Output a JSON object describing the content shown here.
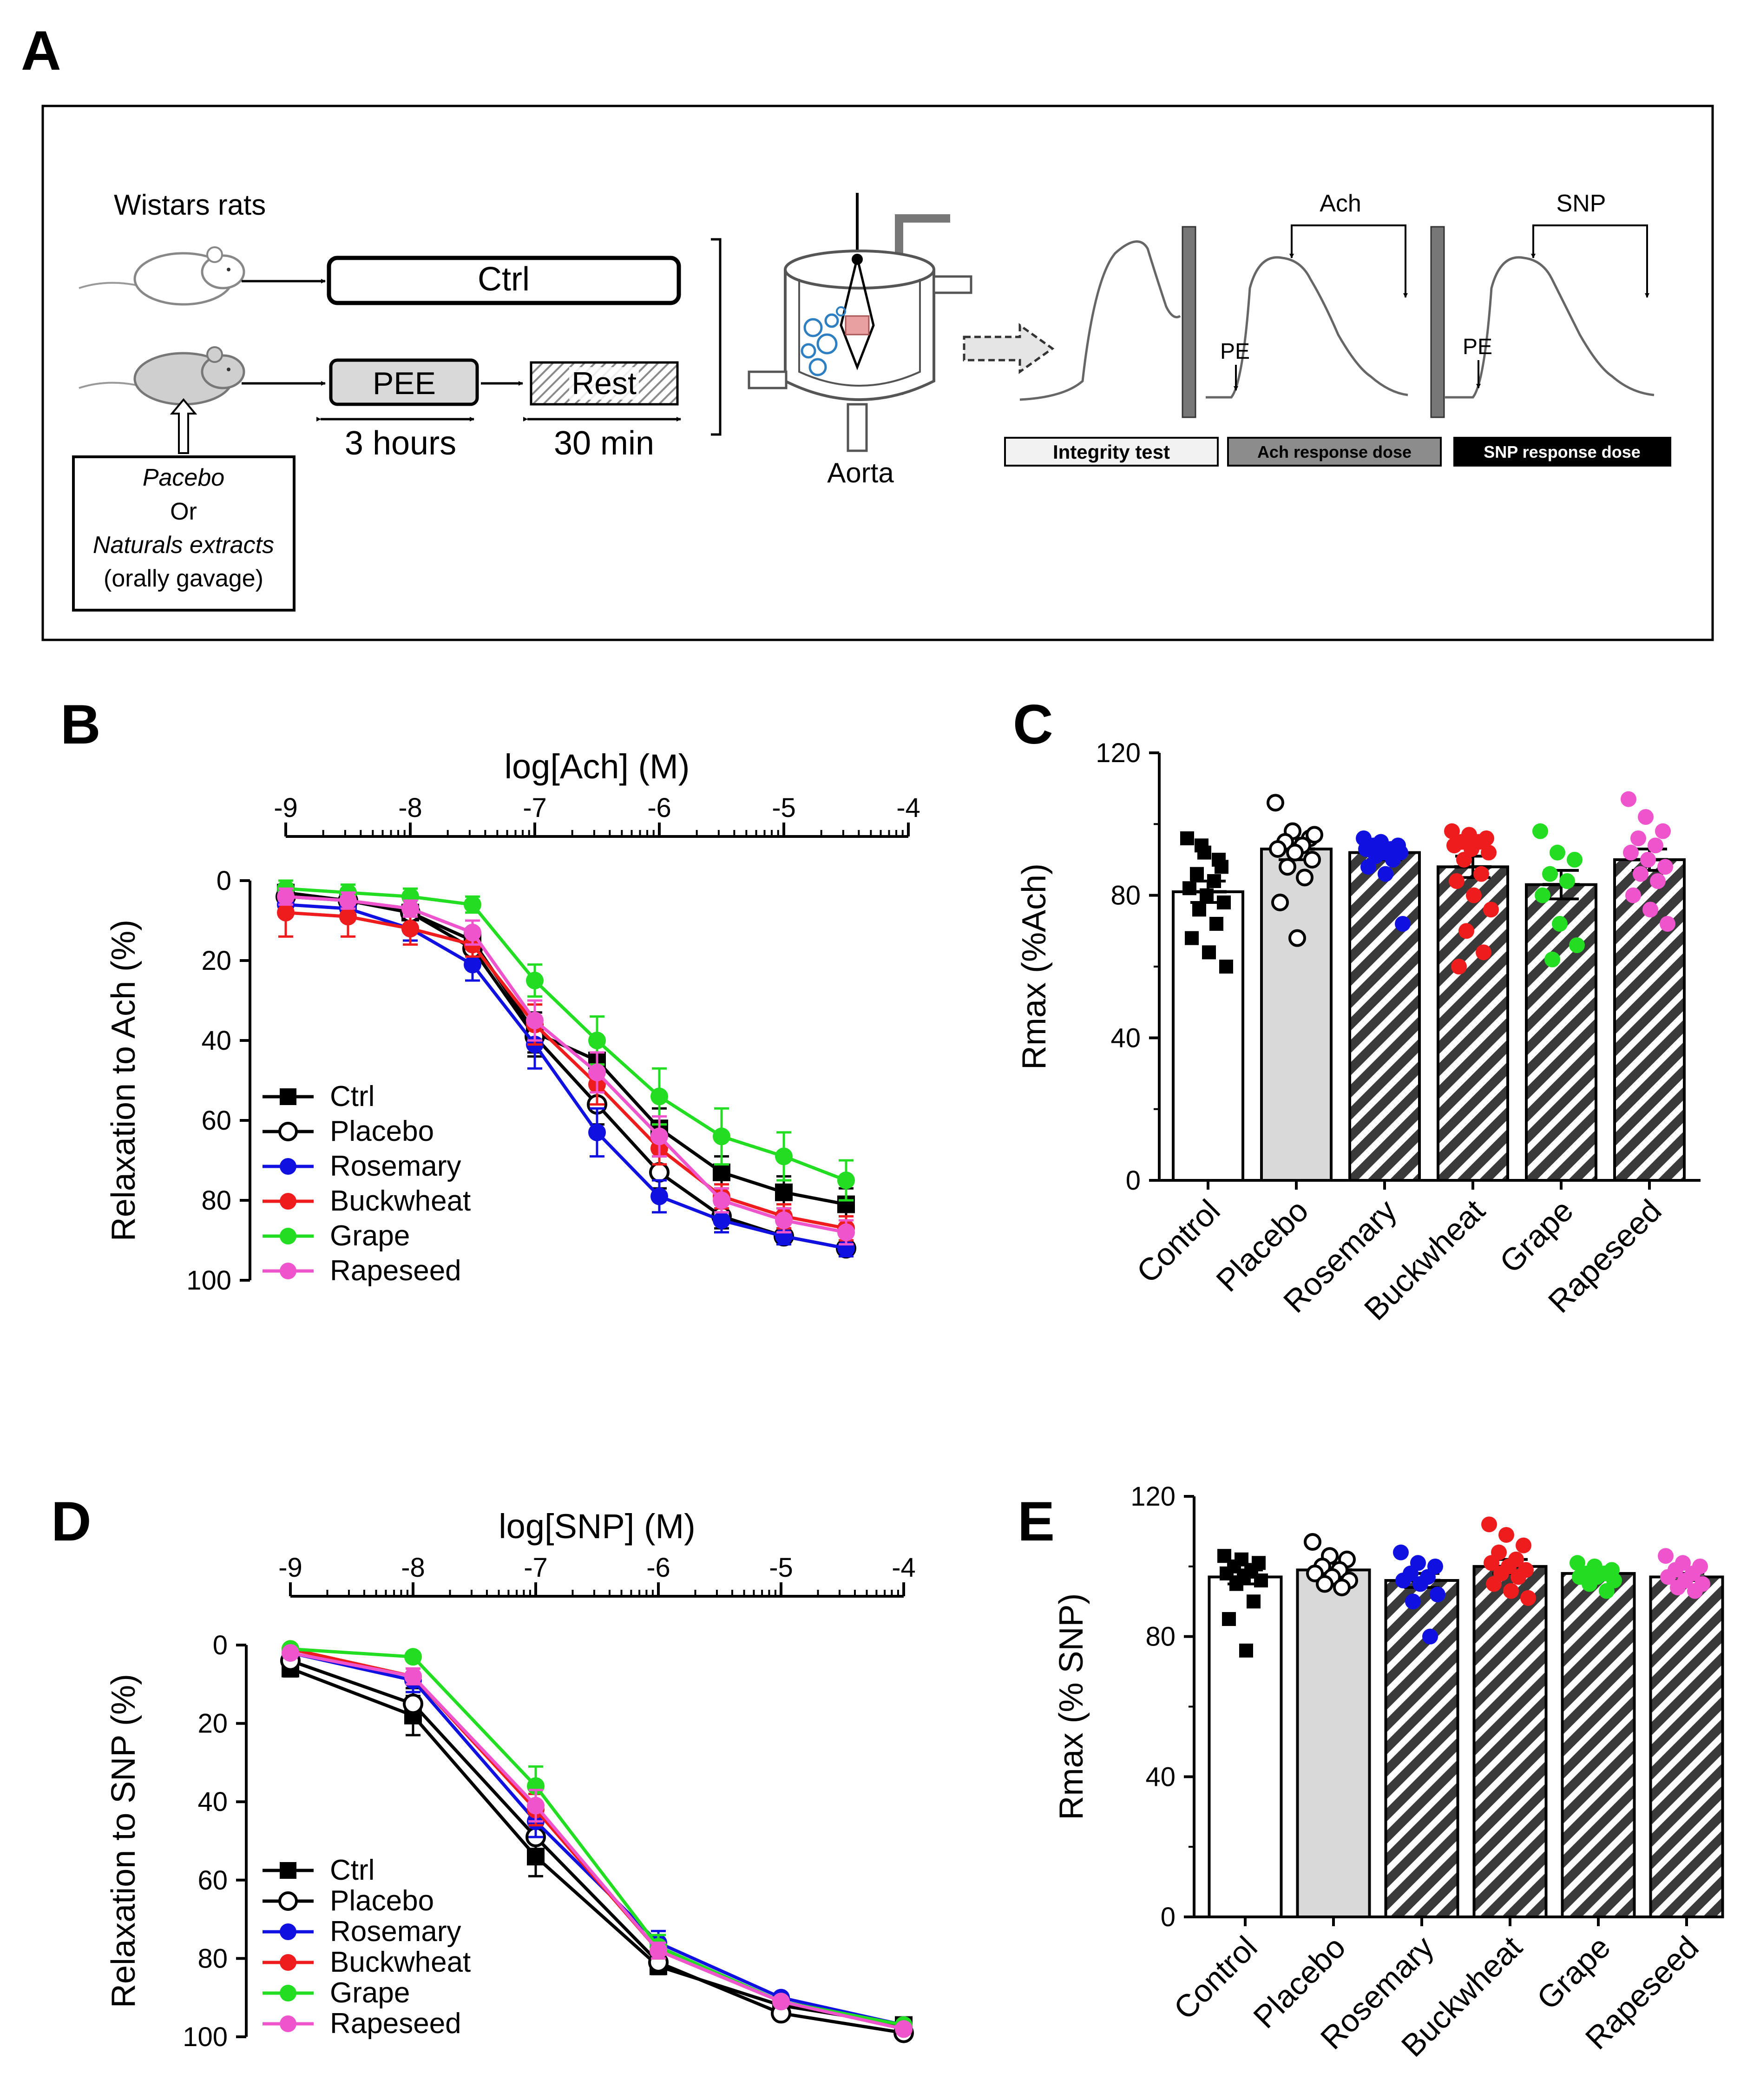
{
  "panels": {
    "A": "A",
    "B": "B",
    "C": "C",
    "D": "D",
    "E": "E"
  },
  "schematic": {
    "rats_label": "Wistars rats",
    "ctrl_box": "Ctrl",
    "pee_box": "PEE",
    "rest_box": "Rest",
    "pee_duration": "3 hours",
    "rest_duration": "30 min",
    "treatment_line1": "Pacebo",
    "treatment_line2": "Or",
    "treatment_line3": "Naturals extracts",
    "treatment_line4": "(orally gavage)",
    "aorta_label": "Aorta",
    "ach_label": "Ach",
    "snp_label": "SNP",
    "pe_label_1": "PE",
    "pe_label_2": "PE",
    "integrity_box": "Integrity test",
    "ach_box": "Ach response dose",
    "snp_box": "SNP response dose"
  },
  "colors": {
    "Ctrl": "#000000",
    "Placebo": "#000000",
    "Rosemary": "#1010e0",
    "Buckwheat": "#ee1c1c",
    "Grape": "#22dd22",
    "Rapeseed": "#ee55cc",
    "placebo_bar": "#d9d9d9",
    "hatch": "#3a3a3a",
    "bubbles": "#2e7fc1",
    "tissue": "#e8a0a0"
  },
  "chart_data": [
    {
      "id": "B",
      "type": "line",
      "title": "log[Ach] (M)",
      "xlabel": "log[Ach] (M)",
      "ylabel": "Relaxation to Ach (%)",
      "xlim": [
        -9,
        -4
      ],
      "ylim": [
        0,
        100
      ],
      "xticks": [
        "-9",
        "-8",
        "-7",
        "-6",
        "-5",
        "-4"
      ],
      "yticks": [
        "0",
        "20",
        "40",
        "60",
        "80",
        "100"
      ],
      "x": [
        -9,
        -8.5,
        -8,
        -7.5,
        -7,
        -6.5,
        -6,
        -5.5,
        -5,
        -4.5
      ],
      "series": [
        {
          "name": "Ctrl",
          "values": [
            3,
            5,
            8,
            15,
            38,
            45,
            62,
            73,
            78,
            81
          ],
          "err": [
            2,
            2,
            3,
            3,
            5,
            4,
            5,
            4,
            4,
            4
          ]
        },
        {
          "name": "Placebo",
          "values": [
            4,
            5,
            8,
            17,
            39,
            56,
            73,
            84,
            89,
            92
          ],
          "err": [
            2,
            2,
            3,
            3,
            5,
            5,
            4,
            3,
            2,
            2
          ]
        },
        {
          "name": "Rosemary",
          "values": [
            6,
            7,
            12,
            21,
            41,
            63,
            79,
            85,
            89,
            92
          ],
          "err": [
            3,
            3,
            3,
            4,
            6,
            6,
            4,
            3,
            2,
            2
          ]
        },
        {
          "name": "Buckwheat",
          "values": [
            8,
            9,
            12,
            16,
            36,
            51,
            67,
            79,
            84,
            87
          ],
          "err": [
            6,
            5,
            4,
            3,
            5,
            5,
            4,
            3,
            3,
            3
          ]
        },
        {
          "name": "Grape",
          "values": [
            2,
            3,
            4,
            6,
            25,
            40,
            54,
            64,
            69,
            75
          ],
          "err": [
            2,
            2,
            2,
            2,
            4,
            6,
            7,
            7,
            6,
            5
          ]
        },
        {
          "name": "Rapeseed",
          "values": [
            4,
            5,
            7,
            13,
            35,
            48,
            64,
            80,
            85,
            88
          ],
          "err": [
            2,
            2,
            2,
            3,
            5,
            5,
            5,
            3,
            3,
            3
          ]
        }
      ],
      "legend": [
        "Ctrl",
        "Placebo",
        "Rosemary",
        "Buckwheat",
        "Grape",
        "Rapeseed"
      ],
      "legend_position": "bottom-left"
    },
    {
      "id": "C",
      "type": "bar",
      "ylabel": "Rmax (%Ach)",
      "ylim": [
        0,
        120
      ],
      "yticks": [
        "0",
        "40",
        "80",
        "120"
      ],
      "categories": [
        "Control",
        "Placebo",
        "Rosemary",
        "Buckwheat",
        "Grape",
        "Rapeseed"
      ],
      "values": [
        81,
        93,
        92,
        88,
        83,
        90
      ],
      "sem": [
        3,
        3,
        2,
        3,
        4,
        3
      ],
      "points": [
        [
          96,
          92,
          88,
          86,
          84,
          82,
          80,
          78,
          76,
          72,
          68,
          64,
          60,
          94,
          90
        ],
        [
          106,
          98,
          96,
          95,
          94,
          93,
          92,
          90,
          88,
          85,
          78,
          68,
          97
        ],
        [
          96,
          95,
          94,
          94,
          93,
          93,
          92,
          92,
          91,
          90,
          88,
          86,
          72
        ],
        [
          98,
          97,
          96,
          95,
          95,
          94,
          93,
          92,
          90,
          86,
          84,
          80,
          76,
          70,
          64,
          60
        ],
        [
          98,
          92,
          90,
          86,
          84,
          80,
          72,
          66,
          62
        ],
        [
          107,
          102,
          98,
          96,
          94,
          92,
          90,
          88,
          86,
          84,
          80,
          76,
          72
        ]
      ]
    },
    {
      "id": "D",
      "type": "line",
      "title": "log[SNP] (M)",
      "xlabel": "log[SNP] (M)",
      "ylabel": "Relaxation to SNP (%)",
      "xlim": [
        -9,
        -4
      ],
      "ylim": [
        0,
        100
      ],
      "xticks": [
        "-9",
        "-8",
        "-7",
        "-6",
        "-5",
        "-4"
      ],
      "yticks": [
        "0",
        "20",
        "40",
        "60",
        "80",
        "100"
      ],
      "x": [
        -9,
        -8,
        -7,
        -6,
        -5,
        -4
      ],
      "series": [
        {
          "name": "Ctrl",
          "values": [
            6,
            18,
            54,
            82,
            92,
            97
          ],
          "err": [
            2,
            5,
            5,
            2,
            1,
            1
          ]
        },
        {
          "name": "Placebo",
          "values": [
            4,
            15,
            49,
            81,
            94,
            99
          ],
          "err": [
            2,
            4,
            5,
            2,
            1,
            1
          ]
        },
        {
          "name": "Rosemary",
          "values": [
            2,
            9,
            45,
            76,
            90,
            97
          ],
          "err": [
            1,
            3,
            4,
            3,
            1,
            1
          ]
        },
        {
          "name": "Buckwheat",
          "values": [
            1,
            8,
            42,
            78,
            91,
            98
          ],
          "err": [
            1,
            2,
            4,
            2,
            1,
            1
          ]
        },
        {
          "name": "Grape",
          "values": [
            1,
            3,
            36,
            77,
            91,
            97
          ],
          "err": [
            1,
            1,
            5,
            3,
            1,
            1
          ]
        },
        {
          "name": "Rapeseed",
          "values": [
            2,
            8,
            41,
            78,
            91,
            98
          ],
          "err": [
            1,
            2,
            4,
            2,
            1,
            1
          ]
        }
      ],
      "legend": [
        "Ctrl",
        "Placebo",
        "Rosemary",
        "Buckwheat",
        "Grape",
        "Rapeseed"
      ],
      "legend_position": "bottom-left"
    },
    {
      "id": "E",
      "type": "bar",
      "ylabel": "Rmax (% SNP)",
      "ylim": [
        0,
        120
      ],
      "yticks": [
        "0",
        "40",
        "80",
        "120"
      ],
      "categories": [
        "Control",
        "Placebo",
        "Rosemary",
        "Buckwheat",
        "Grape",
        "Rapeseed"
      ],
      "values": [
        97,
        99,
        96,
        100,
        98,
        97
      ],
      "sem": [
        2,
        2,
        2,
        2,
        1,
        1
      ],
      "points": [
        [
          103,
          102,
          101,
          100,
          99,
          98,
          97,
          96,
          95,
          90,
          85,
          76
        ],
        [
          107,
          103,
          102,
          100,
          99,
          98,
          97,
          96,
          95,
          94
        ],
        [
          104,
          101,
          100,
          98,
          97,
          96,
          95,
          92,
          90,
          80
        ],
        [
          112,
          109,
          106,
          104,
          102,
          101,
          100,
          99,
          98,
          97,
          95,
          93,
          91
        ],
        [
          101,
          100,
          99,
          98,
          98,
          97,
          97,
          96,
          95,
          93
        ],
        [
          103,
          101,
          100,
          99,
          98,
          97,
          96,
          95,
          94,
          93
        ]
      ]
    }
  ]
}
